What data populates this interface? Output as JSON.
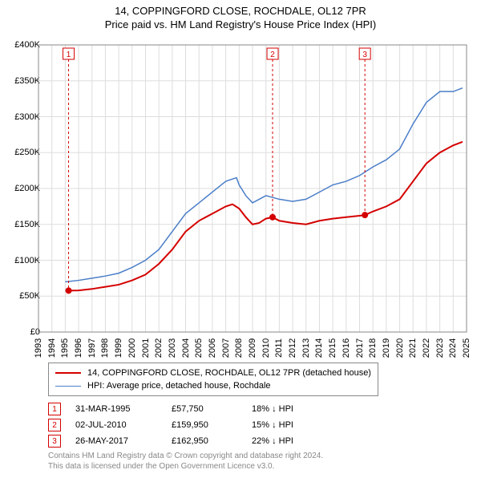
{
  "title_line1": "14, COPPINGFORD CLOSE, ROCHDALE, OL12 7PR",
  "title_line2": "Price paid vs. HM Land Registry's House Price Index (HPI)",
  "chart": {
    "type": "line",
    "background_color": "#ffffff",
    "grid_color": "#dddddd",
    "axis_color": "#888888",
    "x_years": [
      1993,
      1994,
      1995,
      1996,
      1997,
      1998,
      1999,
      2000,
      2001,
      2002,
      2003,
      2004,
      2005,
      2006,
      2007,
      2008,
      2009,
      2010,
      2011,
      2012,
      2013,
      2014,
      2015,
      2016,
      2017,
      2018,
      2019,
      2020,
      2021,
      2022,
      2023,
      2024,
      2025
    ],
    "xlim": [
      1993,
      2025
    ],
    "y_ticks": [
      0,
      50000,
      100000,
      150000,
      200000,
      250000,
      300000,
      350000,
      400000
    ],
    "y_tick_labels": [
      "£0",
      "£50K",
      "£100K",
      "£150K",
      "£200K",
      "£250K",
      "£300K",
      "£350K",
      "£400K"
    ],
    "ylim": [
      0,
      400000
    ],
    "label_fontsize": 11,
    "series": [
      {
        "name": "14, COPPINGFORD CLOSE, ROCHDALE, OL12 7PR (detached house)",
        "color": "#d40000",
        "line_width": 2,
        "points": [
          [
            1995.25,
            57750
          ],
          [
            1996,
            58000
          ],
          [
            1997,
            60000
          ],
          [
            1998,
            63000
          ],
          [
            1999,
            66000
          ],
          [
            2000,
            72000
          ],
          [
            2001,
            80000
          ],
          [
            2002,
            95000
          ],
          [
            2003,
            115000
          ],
          [
            2004,
            140000
          ],
          [
            2005,
            155000
          ],
          [
            2006,
            165000
          ],
          [
            2007,
            175000
          ],
          [
            2007.5,
            178000
          ],
          [
            2008,
            172000
          ],
          [
            2008.5,
            160000
          ],
          [
            2009,
            150000
          ],
          [
            2009.5,
            152000
          ],
          [
            2010,
            158000
          ],
          [
            2010.5,
            159950
          ],
          [
            2011,
            155000
          ],
          [
            2012,
            152000
          ],
          [
            2013,
            150000
          ],
          [
            2014,
            155000
          ],
          [
            2015,
            158000
          ],
          [
            2016,
            160000
          ],
          [
            2017,
            162000
          ],
          [
            2017.4,
            162950
          ],
          [
            2018,
            168000
          ],
          [
            2019,
            175000
          ],
          [
            2020,
            185000
          ],
          [
            2021,
            210000
          ],
          [
            2022,
            235000
          ],
          [
            2023,
            250000
          ],
          [
            2024,
            260000
          ],
          [
            2024.7,
            265000
          ]
        ]
      },
      {
        "name": "HPI: Average price, detached house, Rochdale",
        "color": "#4a7ec8",
        "line_width": 1.5,
        "points": [
          [
            1995,
            70000
          ],
          [
            1996,
            72000
          ],
          [
            1997,
            75000
          ],
          [
            1998,
            78000
          ],
          [
            1999,
            82000
          ],
          [
            2000,
            90000
          ],
          [
            2001,
            100000
          ],
          [
            2002,
            115000
          ],
          [
            2003,
            140000
          ],
          [
            2004,
            165000
          ],
          [
            2005,
            180000
          ],
          [
            2006,
            195000
          ],
          [
            2007,
            210000
          ],
          [
            2007.8,
            215000
          ],
          [
            2008,
            205000
          ],
          [
            2008.5,
            190000
          ],
          [
            2009,
            180000
          ],
          [
            2009.5,
            185000
          ],
          [
            2010,
            190000
          ],
          [
            2011,
            185000
          ],
          [
            2012,
            182000
          ],
          [
            2013,
            185000
          ],
          [
            2014,
            195000
          ],
          [
            2015,
            205000
          ],
          [
            2016,
            210000
          ],
          [
            2017,
            218000
          ],
          [
            2018,
            230000
          ],
          [
            2019,
            240000
          ],
          [
            2020,
            255000
          ],
          [
            2021,
            290000
          ],
          [
            2022,
            320000
          ],
          [
            2023,
            335000
          ],
          [
            2024,
            335000
          ],
          [
            2024.7,
            340000
          ]
        ]
      }
    ],
    "markers": [
      {
        "n": "1",
        "x": 1995.25,
        "y": 57750,
        "color": "#d40000"
      },
      {
        "n": "2",
        "x": 2010.5,
        "y": 159950,
        "color": "#d40000"
      },
      {
        "n": "3",
        "x": 2017.4,
        "y": 162950,
        "color": "#d40000"
      }
    ],
    "marker_box_border": "#d40000",
    "marker_dot_color": "#d40000",
    "marker_dot_radius": 4
  },
  "legend": {
    "border_color": "#888888",
    "items": [
      {
        "color": "#d40000",
        "label": "14, COPPINGFORD CLOSE, ROCHDALE, OL12 7PR (detached house)",
        "width": 2
      },
      {
        "color": "#4a7ec8",
        "label": "HPI: Average price, detached house, Rochdale",
        "width": 1.5
      }
    ]
  },
  "datapoints": [
    {
      "n": "1",
      "date": "31-MAR-1995",
      "price": "£57,750",
      "delta": "18% ↓ HPI"
    },
    {
      "n": "2",
      "date": "02-JUL-2010",
      "price": "£159,950",
      "delta": "15% ↓ HPI"
    },
    {
      "n": "3",
      "date": "26-MAY-2017",
      "price": "£162,950",
      "delta": "22% ↓ HPI"
    }
  ],
  "footer_line1": "Contains HM Land Registry data © Crown copyright and database right 2024.",
  "footer_line2": "This data is licensed under the Open Government Licence v3.0.",
  "footer_color": "#888888"
}
